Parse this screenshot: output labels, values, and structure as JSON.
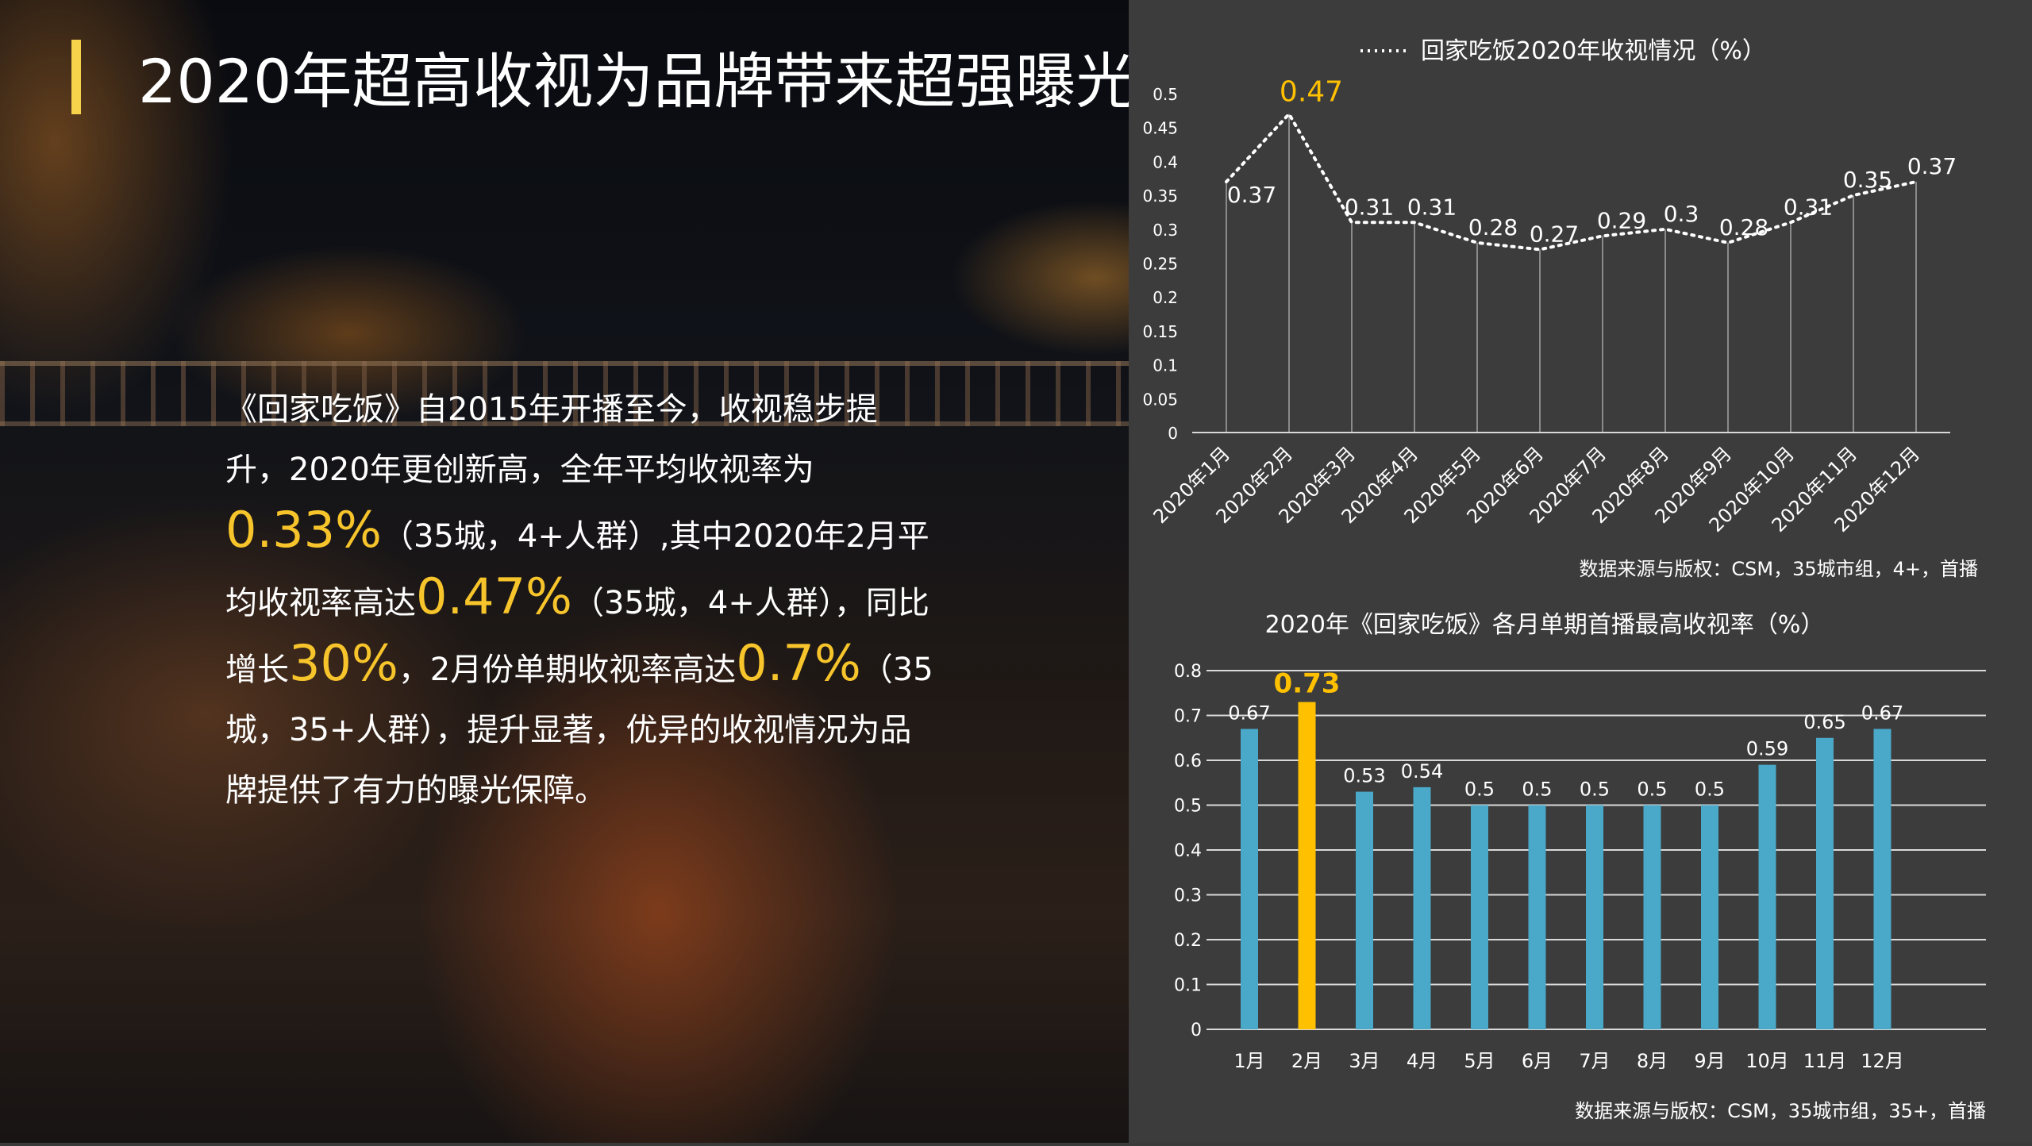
{
  "title": "2020年超高收视为品牌带来超强曝光",
  "body": {
    "p1": "《回家吃饭》自2015年开播至今，收视稳步提升，2020年更创新高，全年平均收视率为",
    "v1": "0.33%",
    "p2": "（35城，4+人群）,其中2020年2月平均收视率高达",
    "v2": "0.47%",
    "p3": "（35城，4+人群），同比增长",
    "v3": "30%",
    "p4": "，2月份单期收视率高达",
    "v4": "0.7%",
    "p5": "（35城，35+人群），提升显著，优异的收视情况为品牌提供了有力的曝光保障。"
  },
  "colors": {
    "accent": "#f7d24b",
    "highlight": "#f7c52b",
    "bar": "#4aa8c8",
    "bar_highlight": "#ffc000",
    "line": "#ffffff"
  },
  "chart_data": [
    {
      "type": "line",
      "title": "回家吃饭2020年收视情况（%）",
      "categories": [
        "2020年1月",
        "2020年2月",
        "2020年3月",
        "2020年4月",
        "2020年5月",
        "2020年6月",
        "2020年7月",
        "2020年8月",
        "2020年9月",
        "2020年10月",
        "2020年11月",
        "2020年12月"
      ],
      "values": [
        0.37,
        0.47,
        0.31,
        0.31,
        0.28,
        0.27,
        0.29,
        0.3,
        0.28,
        0.31,
        0.35,
        0.37
      ],
      "labels": [
        "0.37",
        "0.47",
        "0.31",
        "0.31",
        "0.28",
        "0.27",
        "0.29",
        "0.3",
        "0.28",
        "0.31",
        "0.35",
        "0.37"
      ],
      "yticks": [
        "0",
        "0.05",
        "0.1",
        "0.15",
        "0.2",
        "0.25",
        "0.3",
        "0.35",
        "0.4",
        "0.45",
        "0.5"
      ],
      "ylim": [
        0,
        0.5
      ],
      "highlight_index": 1,
      "source": "数据来源与版权：CSM，35城市组，4+，首播"
    },
    {
      "type": "bar",
      "title": "2020年《回家吃饭》各月单期首播最高收视率（%）",
      "categories": [
        "1月",
        "2月",
        "3月",
        "4月",
        "5月",
        "6月",
        "7月",
        "8月",
        "9月",
        "10月",
        "11月",
        "12月"
      ],
      "values": [
        0.67,
        0.73,
        0.53,
        0.54,
        0.5,
        0.5,
        0.5,
        0.5,
        0.5,
        0.59,
        0.65,
        0.67
      ],
      "labels": [
        "0.67",
        "0.73",
        "0.53",
        "0.54",
        "0.5",
        "0.5",
        "0.5",
        "0.5",
        "0.5",
        "0.59",
        "0.65",
        "0.67"
      ],
      "yticks": [
        "0",
        "0.1",
        "0.2",
        "0.3",
        "0.4",
        "0.5",
        "0.6",
        "0.7",
        "0.8"
      ],
      "ylim": [
        0,
        0.8
      ],
      "highlight_index": 1,
      "source": "数据来源与版权：CSM，35城市组，35+，首播"
    }
  ]
}
